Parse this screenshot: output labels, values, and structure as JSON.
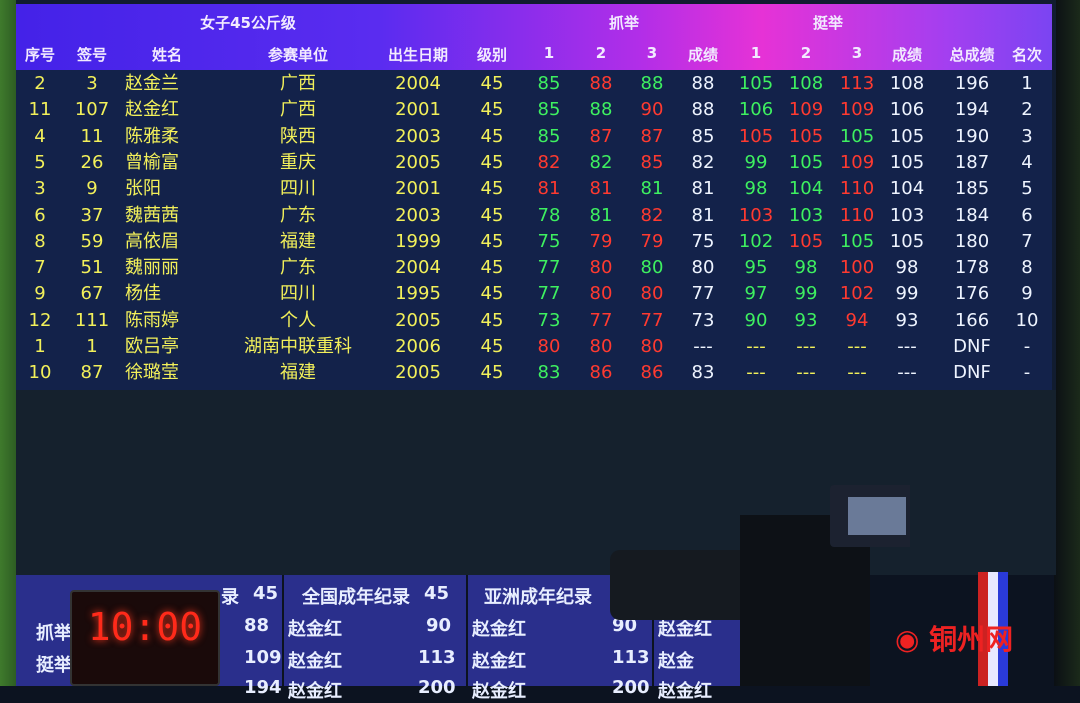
{
  "title": "女子45公斤级",
  "groups": {
    "snatch": "抓举",
    "clean_jerk": "挺举"
  },
  "columns": [
    "序号",
    "签号",
    "姓名",
    "参赛单位",
    "出生日期",
    "级别",
    "1",
    "2",
    "3",
    "成绩",
    "1",
    "2",
    "3",
    "成绩",
    "总成绩",
    "名次"
  ],
  "colors": {
    "good_lift": "#3ef060",
    "no_lift": "#ff3a30",
    "info": "#f2f05a",
    "result": "#eef4ff"
  },
  "rows": [
    {
      "seq": "2",
      "lot": "3",
      "name": "赵金兰",
      "unit": "广西",
      "born": "2004",
      "cat": "45",
      "sn": [
        [
          "85",
          "g"
        ],
        [
          "88",
          "r"
        ],
        [
          "88",
          "g"
        ]
      ],
      "sn_best": "88",
      "cj": [
        [
          "105",
          "g"
        ],
        [
          "108",
          "g"
        ],
        [
          "113",
          "r"
        ]
      ],
      "cj_best": "108",
      "total": "196",
      "rank": "1"
    },
    {
      "seq": "11",
      "lot": "107",
      "name": "赵金红",
      "unit": "广西",
      "born": "2001",
      "cat": "45",
      "sn": [
        [
          "85",
          "g"
        ],
        [
          "88",
          "g"
        ],
        [
          "90",
          "r"
        ]
      ],
      "sn_best": "88",
      "cj": [
        [
          "106",
          "g"
        ],
        [
          "109",
          "r"
        ],
        [
          "109",
          "r"
        ]
      ],
      "cj_best": "106",
      "total": "194",
      "rank": "2"
    },
    {
      "seq": "4",
      "lot": "11",
      "name": "陈雅柔",
      "unit": "陕西",
      "born": "2003",
      "cat": "45",
      "sn": [
        [
          "85",
          "g"
        ],
        [
          "87",
          "r"
        ],
        [
          "87",
          "r"
        ]
      ],
      "sn_best": "85",
      "cj": [
        [
          "105",
          "r"
        ],
        [
          "105",
          "r"
        ],
        [
          "105",
          "g"
        ]
      ],
      "cj_best": "105",
      "total": "190",
      "rank": "3"
    },
    {
      "seq": "5",
      "lot": "26",
      "name": "曾榆富",
      "unit": "重庆",
      "born": "2005",
      "cat": "45",
      "sn": [
        [
          "82",
          "r"
        ],
        [
          "82",
          "g"
        ],
        [
          "85",
          "r"
        ]
      ],
      "sn_best": "82",
      "cj": [
        [
          "99",
          "g"
        ],
        [
          "105",
          "g"
        ],
        [
          "109",
          "r"
        ]
      ],
      "cj_best": "105",
      "total": "187",
      "rank": "4"
    },
    {
      "seq": "3",
      "lot": "9",
      "name": "张阳",
      "unit": "四川",
      "born": "2001",
      "cat": "45",
      "sn": [
        [
          "81",
          "r"
        ],
        [
          "81",
          "r"
        ],
        [
          "81",
          "g"
        ]
      ],
      "sn_best": "81",
      "cj": [
        [
          "98",
          "g"
        ],
        [
          "104",
          "g"
        ],
        [
          "110",
          "r"
        ]
      ],
      "cj_best": "104",
      "total": "185",
      "rank": "5"
    },
    {
      "seq": "6",
      "lot": "37",
      "name": "魏茜茜",
      "unit": "广东",
      "born": "2003",
      "cat": "45",
      "sn": [
        [
          "78",
          "g"
        ],
        [
          "81",
          "g"
        ],
        [
          "82",
          "r"
        ]
      ],
      "sn_best": "81",
      "cj": [
        [
          "103",
          "r"
        ],
        [
          "103",
          "g"
        ],
        [
          "110",
          "r"
        ]
      ],
      "cj_best": "103",
      "total": "184",
      "rank": "6"
    },
    {
      "seq": "8",
      "lot": "59",
      "name": "高依眉",
      "unit": "福建",
      "born": "1999",
      "cat": "45",
      "sn": [
        [
          "75",
          "g"
        ],
        [
          "79",
          "r"
        ],
        [
          "79",
          "r"
        ]
      ],
      "sn_best": "75",
      "cj": [
        [
          "102",
          "g"
        ],
        [
          "105",
          "r"
        ],
        [
          "105",
          "g"
        ]
      ],
      "cj_best": "105",
      "total": "180",
      "rank": "7"
    },
    {
      "seq": "7",
      "lot": "51",
      "name": "魏丽丽",
      "unit": "广东",
      "born": "2004",
      "cat": "45",
      "sn": [
        [
          "77",
          "g"
        ],
        [
          "80",
          "r"
        ],
        [
          "80",
          "g"
        ]
      ],
      "sn_best": "80",
      "cj": [
        [
          "95",
          "g"
        ],
        [
          "98",
          "g"
        ],
        [
          "100",
          "r"
        ]
      ],
      "cj_best": "98",
      "total": "178",
      "rank": "8"
    },
    {
      "seq": "9",
      "lot": "67",
      "name": "杨佳",
      "unit": "四川",
      "born": "1995",
      "cat": "45",
      "sn": [
        [
          "77",
          "g"
        ],
        [
          "80",
          "r"
        ],
        [
          "80",
          "r"
        ]
      ],
      "sn_best": "77",
      "cj": [
        [
          "97",
          "g"
        ],
        [
          "99",
          "g"
        ],
        [
          "102",
          "r"
        ]
      ],
      "cj_best": "99",
      "total": "176",
      "rank": "9"
    },
    {
      "seq": "12",
      "lot": "111",
      "name": "陈雨婷",
      "unit": "个人",
      "born": "2005",
      "cat": "45",
      "sn": [
        [
          "73",
          "g"
        ],
        [
          "77",
          "r"
        ],
        [
          "77",
          "r"
        ]
      ],
      "sn_best": "73",
      "cj": [
        [
          "90",
          "g"
        ],
        [
          "93",
          "g"
        ],
        [
          "94",
          "r"
        ]
      ],
      "cj_best": "93",
      "total": "166",
      "rank": "10"
    },
    {
      "seq": "1",
      "lot": "1",
      "name": "欧吕亭",
      "unit": "湖南中联重科",
      "born": "2006",
      "cat": "45",
      "sn": [
        [
          "80",
          "r"
        ],
        [
          "80",
          "r"
        ],
        [
          "80",
          "r"
        ]
      ],
      "sn_best": "---",
      "cj": [
        [
          "---",
          "y"
        ],
        [
          "---",
          "y"
        ],
        [
          "---",
          "y"
        ]
      ],
      "cj_best": "---",
      "total": "DNF",
      "rank": "-"
    },
    {
      "seq": "10",
      "lot": "87",
      "name": "徐璐莹",
      "unit": "福建",
      "born": "2005",
      "cat": "45",
      "sn": [
        [
          "83",
          "g"
        ],
        [
          "86",
          "r"
        ],
        [
          "86",
          "r"
        ]
      ],
      "sn_best": "83",
      "cj": [
        [
          "---",
          "y"
        ],
        [
          "---",
          "y"
        ],
        [
          "---",
          "y"
        ]
      ],
      "cj_best": "---",
      "total": "DNF",
      "rank": "-"
    }
  ],
  "records": {
    "row_labels": [
      "抓举",
      "挺举"
    ],
    "panel1": {
      "title": "录",
      "cat": "45",
      "values": [
        "88",
        "109",
        "194"
      ]
    },
    "national": {
      "title": "全国成年纪录",
      "cat": "45",
      "holders": [
        "赵金红",
        "赵金红",
        "赵金红"
      ],
      "values": [
        "90",
        "113",
        "200"
      ]
    },
    "asian": {
      "title": "亚洲成年纪录",
      "holders": [
        "赵金红",
        "赵金红",
        "赵金红"
      ],
      "values": [
        "90",
        "113",
        "200"
      ]
    },
    "panel4": {
      "holders": [
        "赵金红",
        "赵金",
        "赵金红"
      ]
    }
  },
  "timer": "10:00",
  "watermark": "铜州网"
}
